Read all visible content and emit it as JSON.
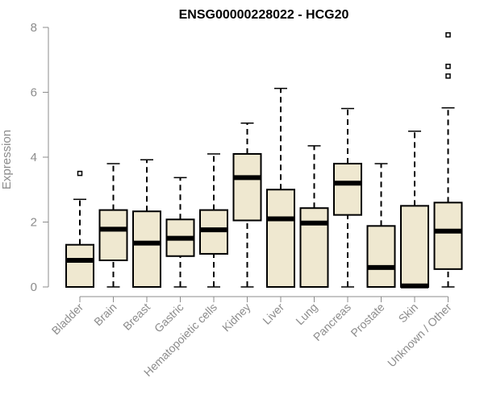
{
  "chart_data": {
    "type": "boxplot",
    "title": "ENSG00000228022 - HCG20",
    "xlabel": "",
    "ylabel": "Expression",
    "ylim": [
      0,
      8
    ],
    "yticks": [
      0,
      2,
      4,
      6,
      8
    ],
    "grid": false,
    "box_fill": "#efe8d0",
    "box_stroke": "#000000",
    "axis_color": "#8c8c8c",
    "categories": [
      "Bladder",
      "Brain",
      "Breast",
      "Gastric",
      "Hematopoietic cells",
      "Kidney",
      "Liver",
      "Lung",
      "Pancreas",
      "Prostate",
      "Skin",
      "Unknown / Other"
    ],
    "boxes": [
      {
        "min": 0.0,
        "q1": 0.0,
        "median": 0.82,
        "q3": 1.3,
        "max": 2.7,
        "outliers": [
          3.5
        ]
      },
      {
        "min": 0.0,
        "q1": 0.82,
        "median": 1.78,
        "q3": 2.37,
        "max": 3.8,
        "outliers": []
      },
      {
        "min": 0.0,
        "q1": 0.0,
        "median": 1.35,
        "q3": 2.33,
        "max": 3.92,
        "outliers": []
      },
      {
        "min": 0.0,
        "q1": 0.95,
        "median": 1.5,
        "q3": 2.08,
        "max": 3.37,
        "outliers": []
      },
      {
        "min": 0.0,
        "q1": 1.02,
        "median": 1.76,
        "q3": 2.37,
        "max": 4.1,
        "outliers": []
      },
      {
        "min": 0.0,
        "q1": 2.05,
        "median": 3.37,
        "q3": 4.1,
        "max": 5.05,
        "outliers": []
      },
      {
        "min": 0.0,
        "q1": 0.0,
        "median": 2.1,
        "q3": 3.0,
        "max": 6.12,
        "outliers": []
      },
      {
        "min": 0.0,
        "q1": 0.0,
        "median": 1.97,
        "q3": 2.43,
        "max": 4.35,
        "outliers": []
      },
      {
        "min": 0.0,
        "q1": 2.22,
        "median": 3.2,
        "q3": 3.8,
        "max": 5.5,
        "outliers": []
      },
      {
        "min": 0.0,
        "q1": 0.0,
        "median": 0.6,
        "q3": 1.88,
        "max": 3.8,
        "outliers": []
      },
      {
        "min": 0.0,
        "q1": 0.0,
        "median": 0.03,
        "q3": 2.5,
        "max": 4.8,
        "outliers": []
      },
      {
        "min": 0.0,
        "q1": 0.55,
        "median": 1.72,
        "q3": 2.6,
        "max": 5.52,
        "outliers": [
          6.5,
          6.8,
          7.77
        ]
      }
    ]
  }
}
